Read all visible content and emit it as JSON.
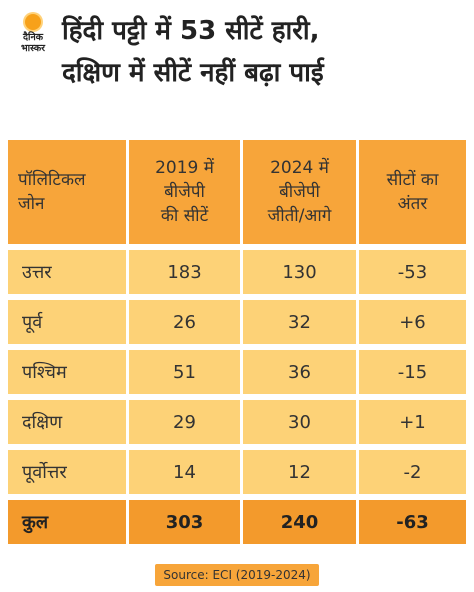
{
  "logo": {
    "line1": "दैनिक",
    "line2": "भास्कर"
  },
  "headline": {
    "line1": "हिंदी पट्टी में 53 सीटें हारी,",
    "line2": "दक्षिण में सीटें नहीं बढ़ा पाई"
  },
  "chart_data": {
    "type": "table",
    "columns": [
      "पॉलिटिकल जोन",
      "2019 में बीजेपी की सीटें",
      "2024 में बीजेपी जीती/आगे",
      "सीटों का अंतर"
    ],
    "header_lines": [
      [
        "पॉलिटिकल",
        "जोन"
      ],
      [
        "2019 में",
        "बीजेपी",
        "की सीटें"
      ],
      [
        "2024 में",
        "बीजेपी",
        "जीती/आगे"
      ],
      [
        "सीटों का",
        "अंतर"
      ]
    ],
    "rows": [
      [
        "उत्तर",
        "183",
        "130",
        "-53"
      ],
      [
        "पूर्व",
        "26",
        "32",
        "+6"
      ],
      [
        "पश्चिम",
        "51",
        "36",
        "-15"
      ],
      [
        "दक्षिण",
        "29",
        "30",
        "+1"
      ],
      [
        "पूर्वोत्तर",
        "14",
        "12",
        "-2"
      ]
    ],
    "total": [
      "कुल",
      "303",
      "240",
      "-63"
    ]
  },
  "source": "Source: ECI (2019-2024)",
  "colors": {
    "header": "#f7a53a",
    "row": "#fdd277",
    "total": "#f39a2c",
    "logo_sun": "#f7a11a"
  }
}
